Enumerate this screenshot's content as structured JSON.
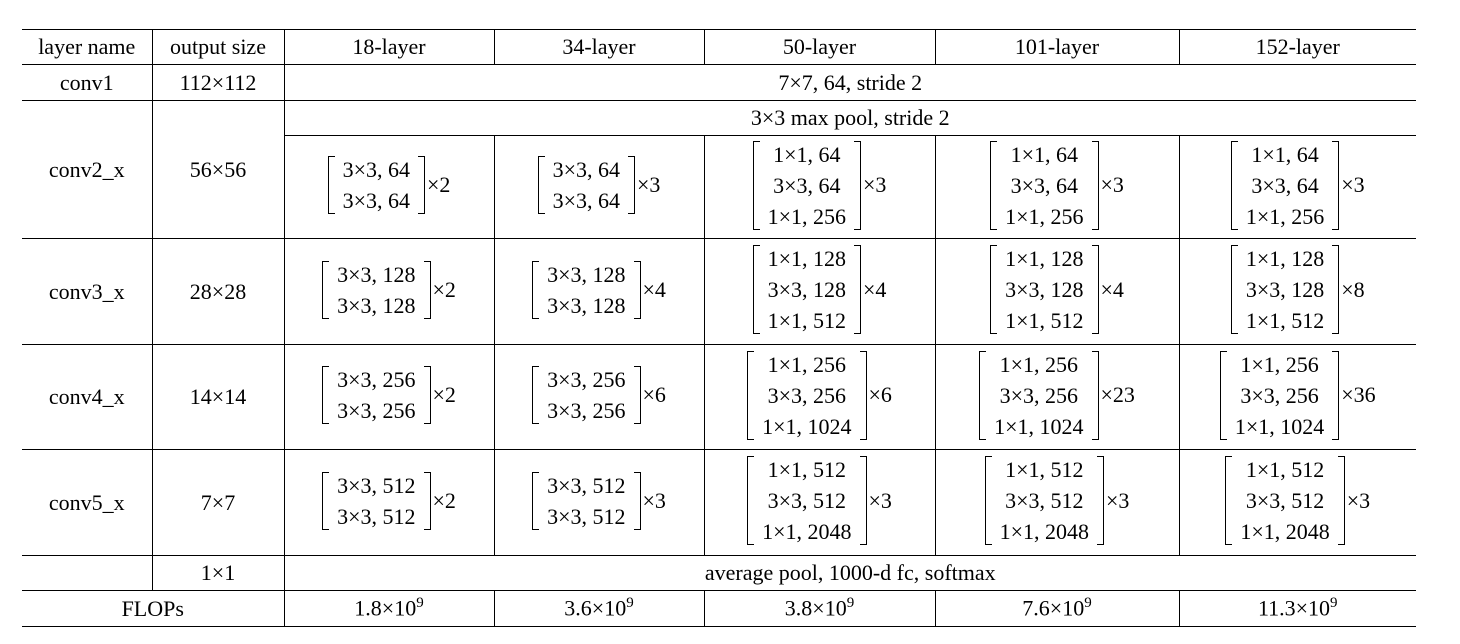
{
  "table": {
    "header": [
      "layer name",
      "output size",
      "18-layer",
      "34-layer",
      "50-layer",
      "101-layer",
      "152-layer"
    ],
    "conv1": {
      "name": "conv1",
      "output": "112×112",
      "spec": "7×7, 64, stride 2"
    },
    "pool": "3×3 max pool, stride 2",
    "stages": [
      {
        "name": "conv2_x",
        "output": "56×56",
        "blocks": [
          {
            "lines": [
              "3×3, 64",
              "3×3, 64"
            ],
            "repeat": "×2"
          },
          {
            "lines": [
              "3×3, 64",
              "3×3, 64"
            ],
            "repeat": "×3"
          },
          {
            "lines": [
              "1×1, 64",
              "3×3, 64",
              "1×1, 256"
            ],
            "repeat": "×3"
          },
          {
            "lines": [
              "1×1, 64",
              "3×3, 64",
              "1×1, 256"
            ],
            "repeat": "×3"
          },
          {
            "lines": [
              "1×1, 64",
              "3×3, 64",
              "1×1, 256"
            ],
            "repeat": "×3"
          }
        ]
      },
      {
        "name": "conv3_x",
        "output": "28×28",
        "blocks": [
          {
            "lines": [
              "3×3, 128",
              "3×3, 128"
            ],
            "repeat": "×2"
          },
          {
            "lines": [
              "3×3, 128",
              "3×3, 128"
            ],
            "repeat": "×4"
          },
          {
            "lines": [
              "1×1, 128",
              "3×3, 128",
              "1×1, 512"
            ],
            "repeat": "×4"
          },
          {
            "lines": [
              "1×1, 128",
              "3×3, 128",
              "1×1, 512"
            ],
            "repeat": "×4"
          },
          {
            "lines": [
              "1×1, 128",
              "3×3, 128",
              "1×1, 512"
            ],
            "repeat": "×8"
          }
        ]
      },
      {
        "name": "conv4_x",
        "output": "14×14",
        "blocks": [
          {
            "lines": [
              "3×3, 256",
              "3×3, 256"
            ],
            "repeat": "×2"
          },
          {
            "lines": [
              "3×3, 256",
              "3×3, 256"
            ],
            "repeat": "×6"
          },
          {
            "lines": [
              "1×1, 256",
              "3×3, 256",
              "1×1, 1024"
            ],
            "repeat": "×6"
          },
          {
            "lines": [
              "1×1, 256",
              "3×3, 256",
              "1×1, 1024"
            ],
            "repeat": "×23"
          },
          {
            "lines": [
              "1×1, 256",
              "3×3, 256",
              "1×1, 1024"
            ],
            "repeat": "×36"
          }
        ]
      },
      {
        "name": "conv5_x",
        "output": "7×7",
        "blocks": [
          {
            "lines": [
              "3×3, 512",
              "3×3, 512"
            ],
            "repeat": "×2"
          },
          {
            "lines": [
              "3×3, 512",
              "3×3, 512"
            ],
            "repeat": "×3"
          },
          {
            "lines": [
              "1×1, 512",
              "3×3, 512",
              "1×1, 2048"
            ],
            "repeat": "×3"
          },
          {
            "lines": [
              "1×1, 512",
              "3×3, 512",
              "1×1, 2048"
            ],
            "repeat": "×3"
          },
          {
            "lines": [
              "1×1, 512",
              "3×3, 512",
              "1×1, 2048"
            ],
            "repeat": "×3"
          }
        ]
      }
    ],
    "final": {
      "output": "1×1",
      "spec": "average pool, 1000-d fc, softmax"
    },
    "flops": {
      "label": "FLOPs",
      "values": [
        {
          "base": "1.8×10",
          "exp": "9"
        },
        {
          "base": "3.6×10",
          "exp": "9"
        },
        {
          "base": "3.8×10",
          "exp": "9"
        },
        {
          "base": "7.6×10",
          "exp": "9"
        },
        {
          "base": "11.3×10",
          "exp": "9"
        }
      ]
    }
  }
}
